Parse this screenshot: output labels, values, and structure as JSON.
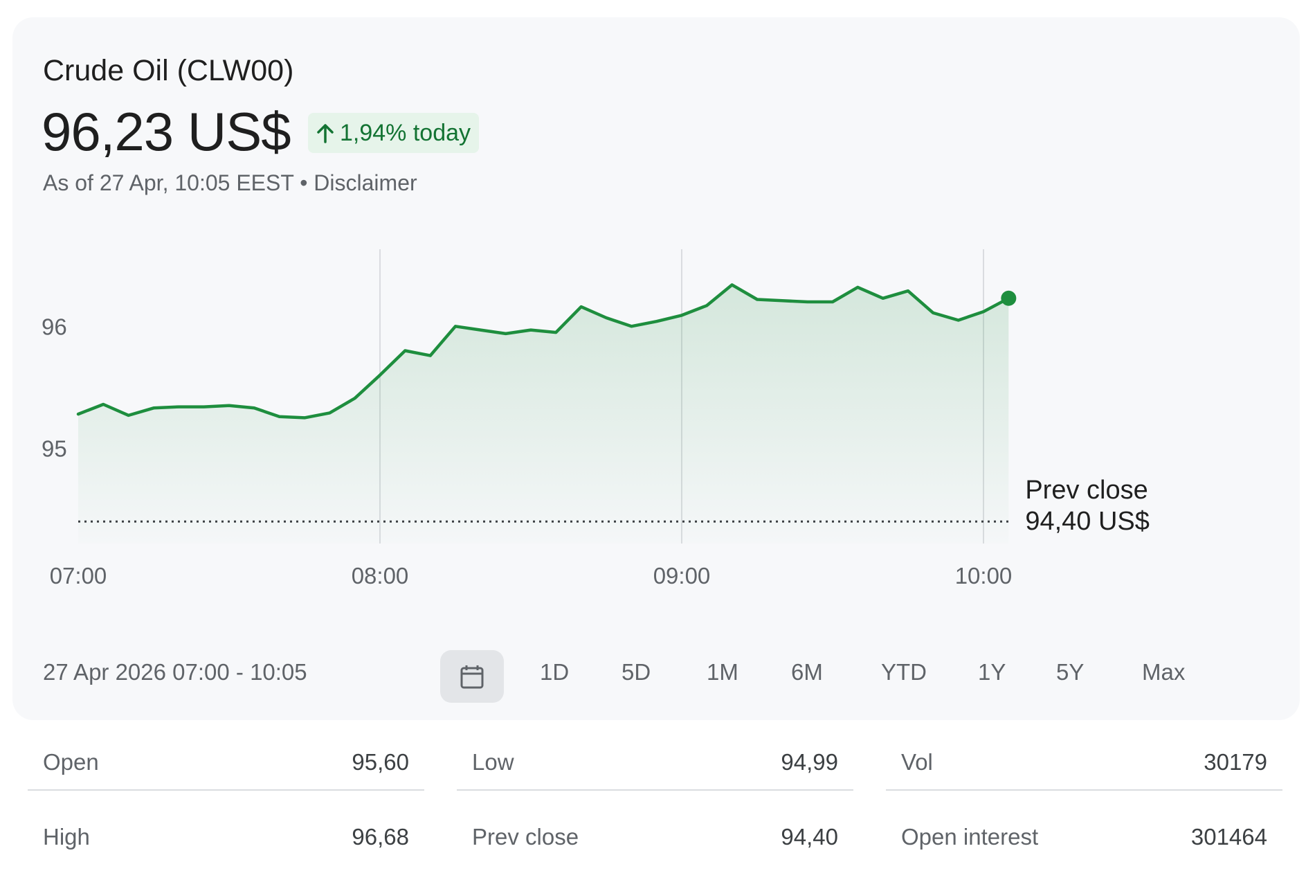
{
  "header": {
    "title": "Crude Oil (CLW00)",
    "price": "96,23 US$",
    "change": "1,94% today",
    "asof": "As of 27 Apr, 10:05 EEST",
    "separator": "•",
    "disclaimer": "Disclaimer"
  },
  "colors": {
    "line": "#1e8e3e",
    "badge_bg": "#e6f4ea",
    "badge_text": "#137333",
    "grid": "#dadce0"
  },
  "chart_data": {
    "type": "area",
    "x": [
      "07:00",
      "07:05",
      "07:10",
      "07:15",
      "07:20",
      "07:25",
      "07:30",
      "07:35",
      "07:40",
      "07:45",
      "07:50",
      "07:55",
      "08:00",
      "08:05",
      "08:10",
      "08:15",
      "08:20",
      "08:25",
      "08:30",
      "08:35",
      "08:40",
      "08:45",
      "08:50",
      "08:55",
      "09:00",
      "09:05",
      "09:10",
      "09:15",
      "09:20",
      "09:25",
      "09:30",
      "09:35",
      "09:40",
      "09:45",
      "09:50",
      "09:55",
      "10:00",
      "10:05"
    ],
    "series": [
      {
        "values": [
          95.28,
          95.36,
          95.27,
          95.33,
          95.34,
          95.34,
          95.35,
          95.33,
          95.26,
          95.25,
          95.29,
          95.41,
          95.6,
          95.8,
          95.76,
          96.0,
          95.97,
          95.94,
          95.97,
          95.95,
          96.16,
          96.07,
          96.0,
          96.04,
          96.09,
          96.17,
          96.34,
          96.22,
          96.21,
          96.2,
          96.2,
          96.32,
          96.23,
          96.29,
          96.11,
          96.05,
          96.12,
          96.23
        ]
      }
    ],
    "x_ticks": [
      "07:00",
      "08:00",
      "09:00",
      "10:00"
    ],
    "y_ticks": [
      95,
      96
    ],
    "ylim": [
      94.35,
      96.45
    ],
    "prev_close": 94.4,
    "prev_close_label": "Prev close",
    "prev_close_value": "94,40 US$",
    "grid": "vertical at hour marks",
    "last_point_marker": true
  },
  "range": {
    "label": "27 Apr 2026 07:00 - 10:05",
    "calendar_icon": "calendar-icon",
    "options": [
      "1D",
      "5D",
      "1M",
      "6M",
      "YTD",
      "1Y",
      "5Y",
      "Max"
    ]
  },
  "stats": {
    "open_label": "Open",
    "open_value": "95,60",
    "high_label": "High",
    "high_value": "96,68",
    "low_label": "Low",
    "low_value": "94,99",
    "prevclose_label": "Prev close",
    "prevclose_value": "94,40",
    "vol_label": "Vol",
    "vol_value": "30179",
    "oi_label": "Open interest",
    "oi_value": "301464"
  }
}
